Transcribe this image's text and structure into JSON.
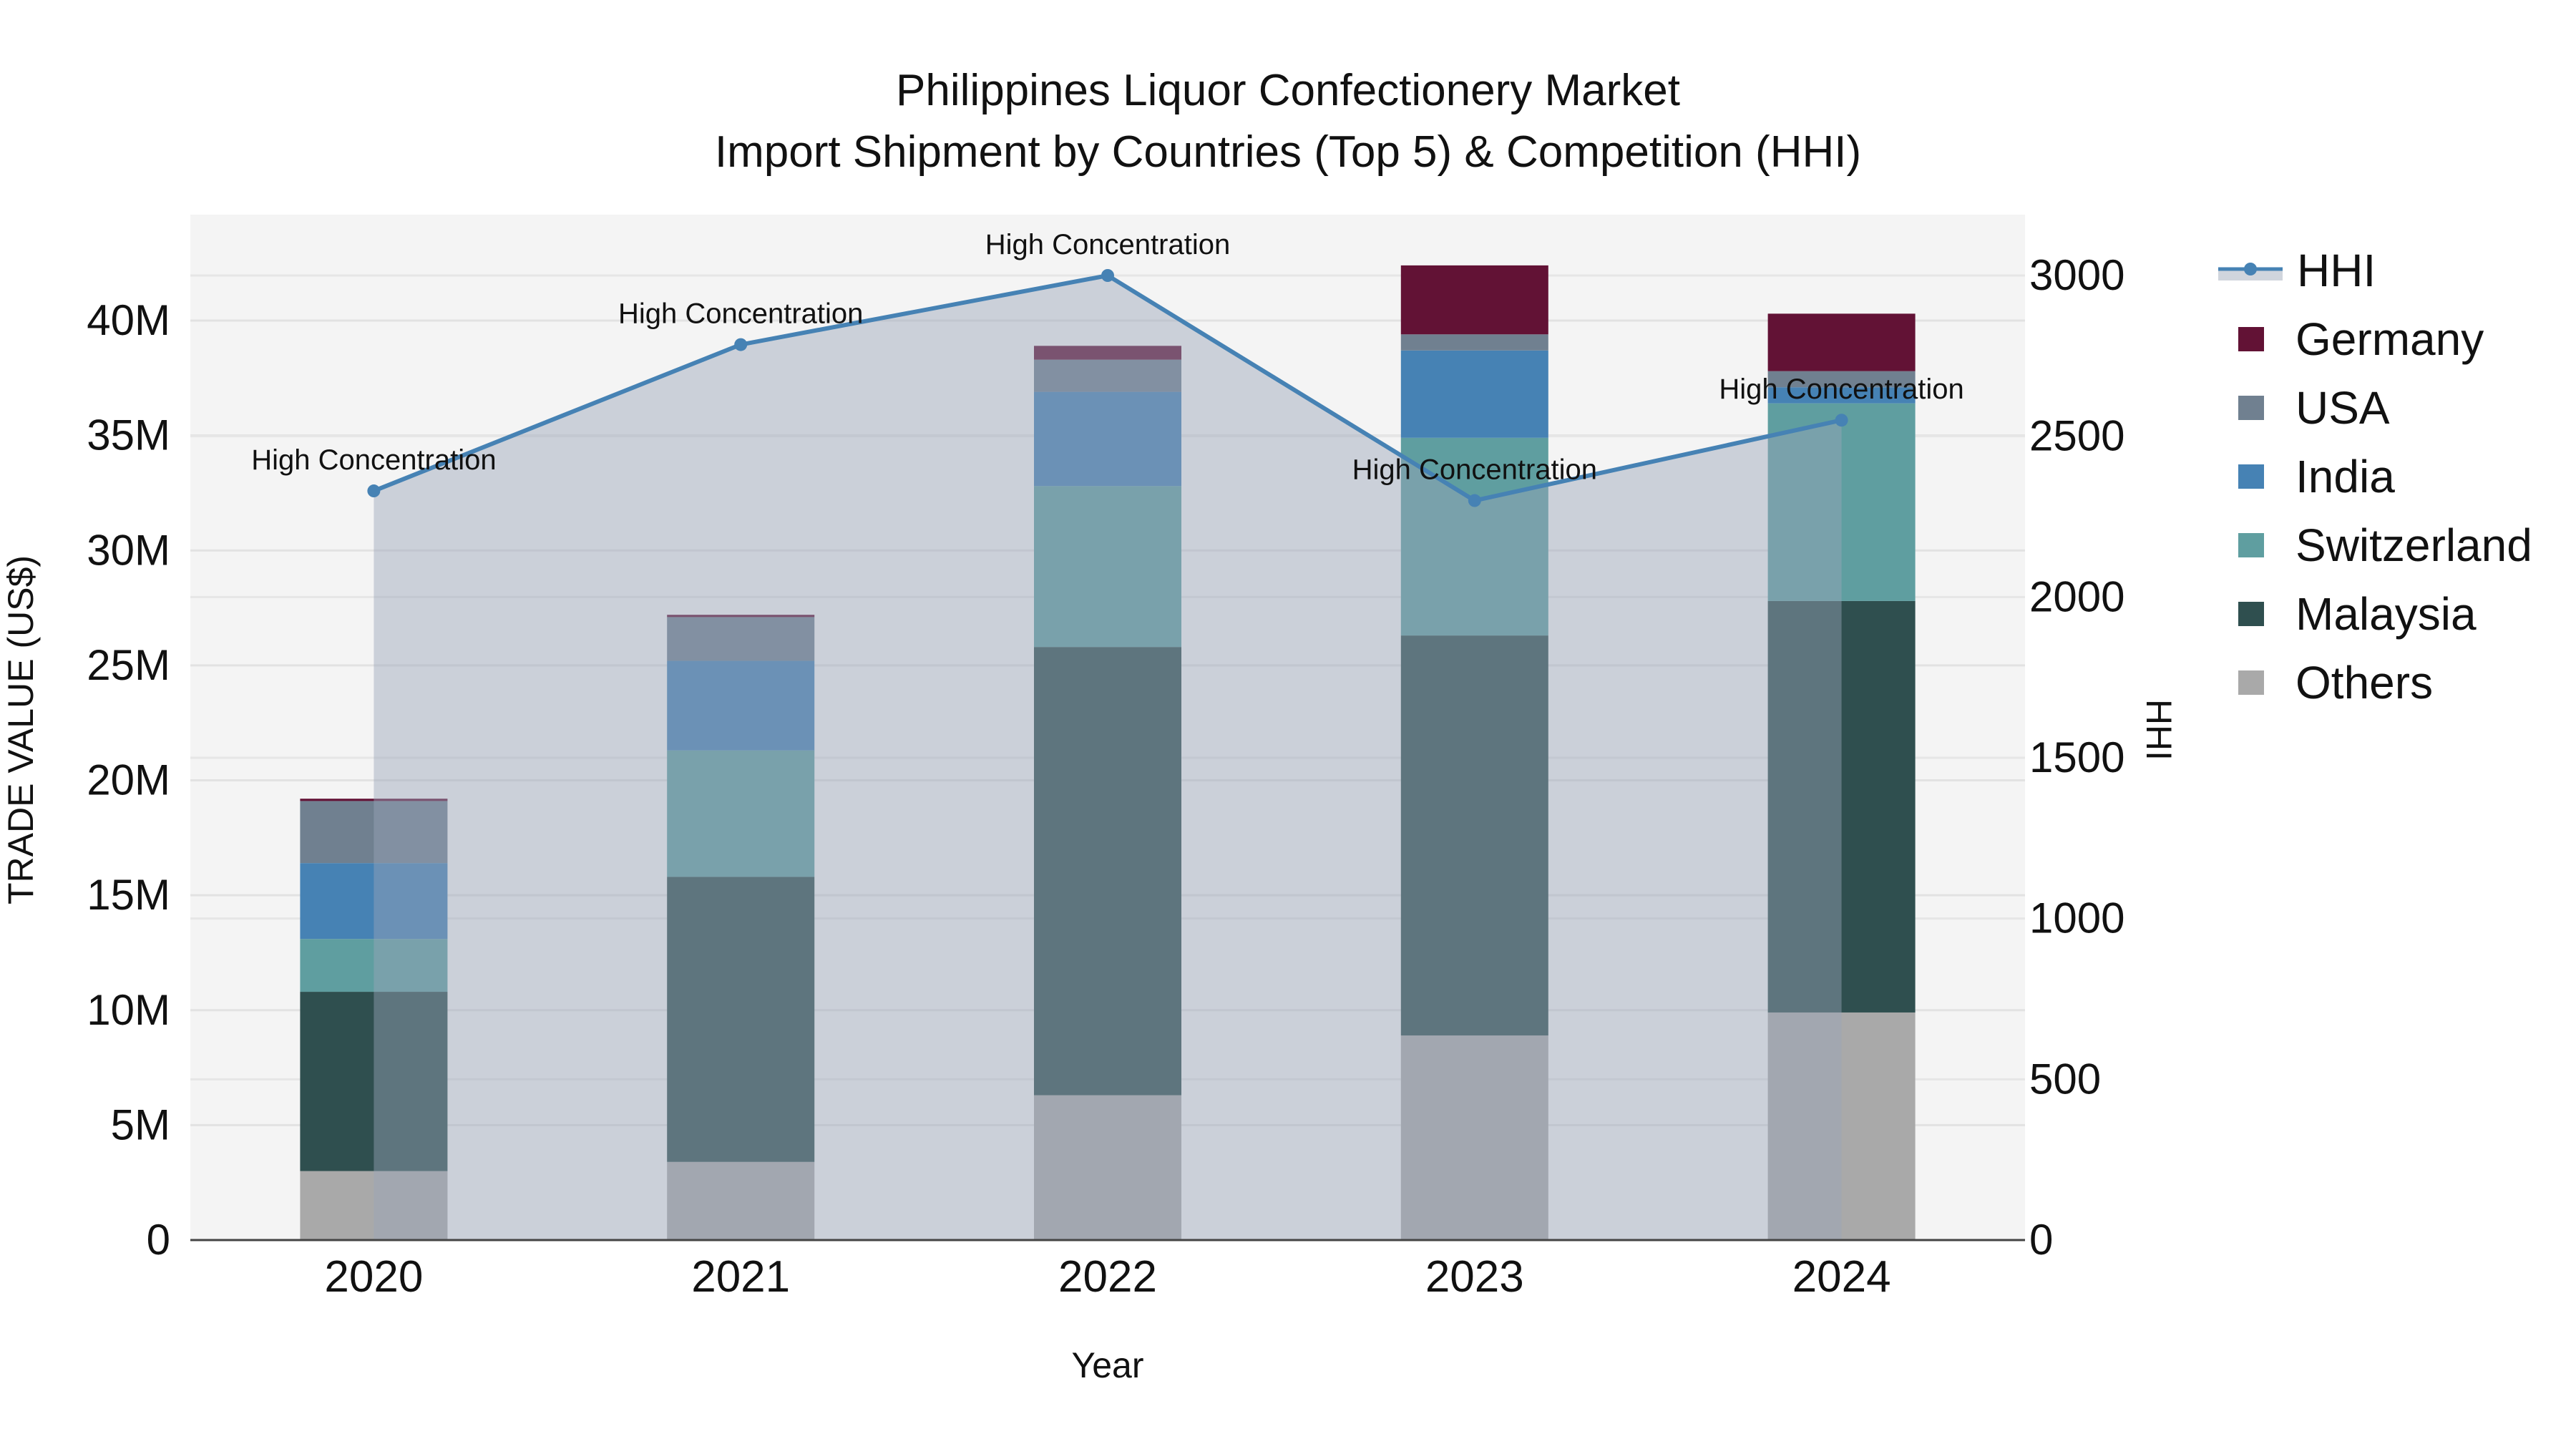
{
  "chart_data": {
    "type": "bar",
    "stacked": true,
    "title": "Philippines Liquor Confectionery Market",
    "subtitle": "Import Shipment by Countries (Top 5) & Competition (HHI)",
    "xlabel": "Year",
    "ylabel": "TRADE VALUE (US$)",
    "y2label": "HHI",
    "categories": [
      "2020",
      "2021",
      "2022",
      "2023",
      "2024"
    ],
    "ylim": [
      0,
      44.5
    ],
    "y_ticks": [
      "0",
      "5M",
      "10M",
      "15M",
      "20M",
      "25M",
      "30M",
      "35M",
      "40M"
    ],
    "y2lim": [
      0,
      3180
    ],
    "y2_ticks": [
      "0",
      "500",
      "1000",
      "1500",
      "2000",
      "2500",
      "3000"
    ],
    "series": [
      {
        "name": "Others",
        "color": "#A9A9A9",
        "values": [
          3.0,
          3.4,
          6.3,
          8.9,
          9.9
        ]
      },
      {
        "name": "Malaysia",
        "color": "#2F4F4F",
        "values": [
          7.8,
          12.4,
          19.5,
          17.4,
          17.9
        ]
      },
      {
        "name": "Switzerland",
        "color": "#5F9EA0",
        "values": [
          2.3,
          5.5,
          7.0,
          8.6,
          8.6
        ]
      },
      {
        "name": "India",
        "color": "#4682B4",
        "values": [
          3.3,
          3.9,
          4.1,
          3.8,
          0.7
        ]
      },
      {
        "name": "USA",
        "color": "#708090",
        "values": [
          2.7,
          1.9,
          1.4,
          0.7,
          0.7
        ]
      },
      {
        "name": "Germany",
        "color": "#621235",
        "values": [
          0.1,
          0.1,
          0.6,
          3.0,
          2.5
        ]
      }
    ],
    "line_series": {
      "name": "HHI",
      "color": "#4682B4",
      "fill_color": "#C8CDD5",
      "values": [
        2330,
        2785,
        3000,
        2300,
        2550
      ],
      "annotations": [
        "High Concentration",
        "High Concentration",
        "High Concentration",
        "High Concentration",
        "High Concentration"
      ]
    },
    "legend_position": "right",
    "grid": true
  },
  "legend": {
    "items": [
      "HHI",
      "Germany",
      "USA",
      "India",
      "Switzerland",
      "Malaysia",
      "Others"
    ]
  }
}
